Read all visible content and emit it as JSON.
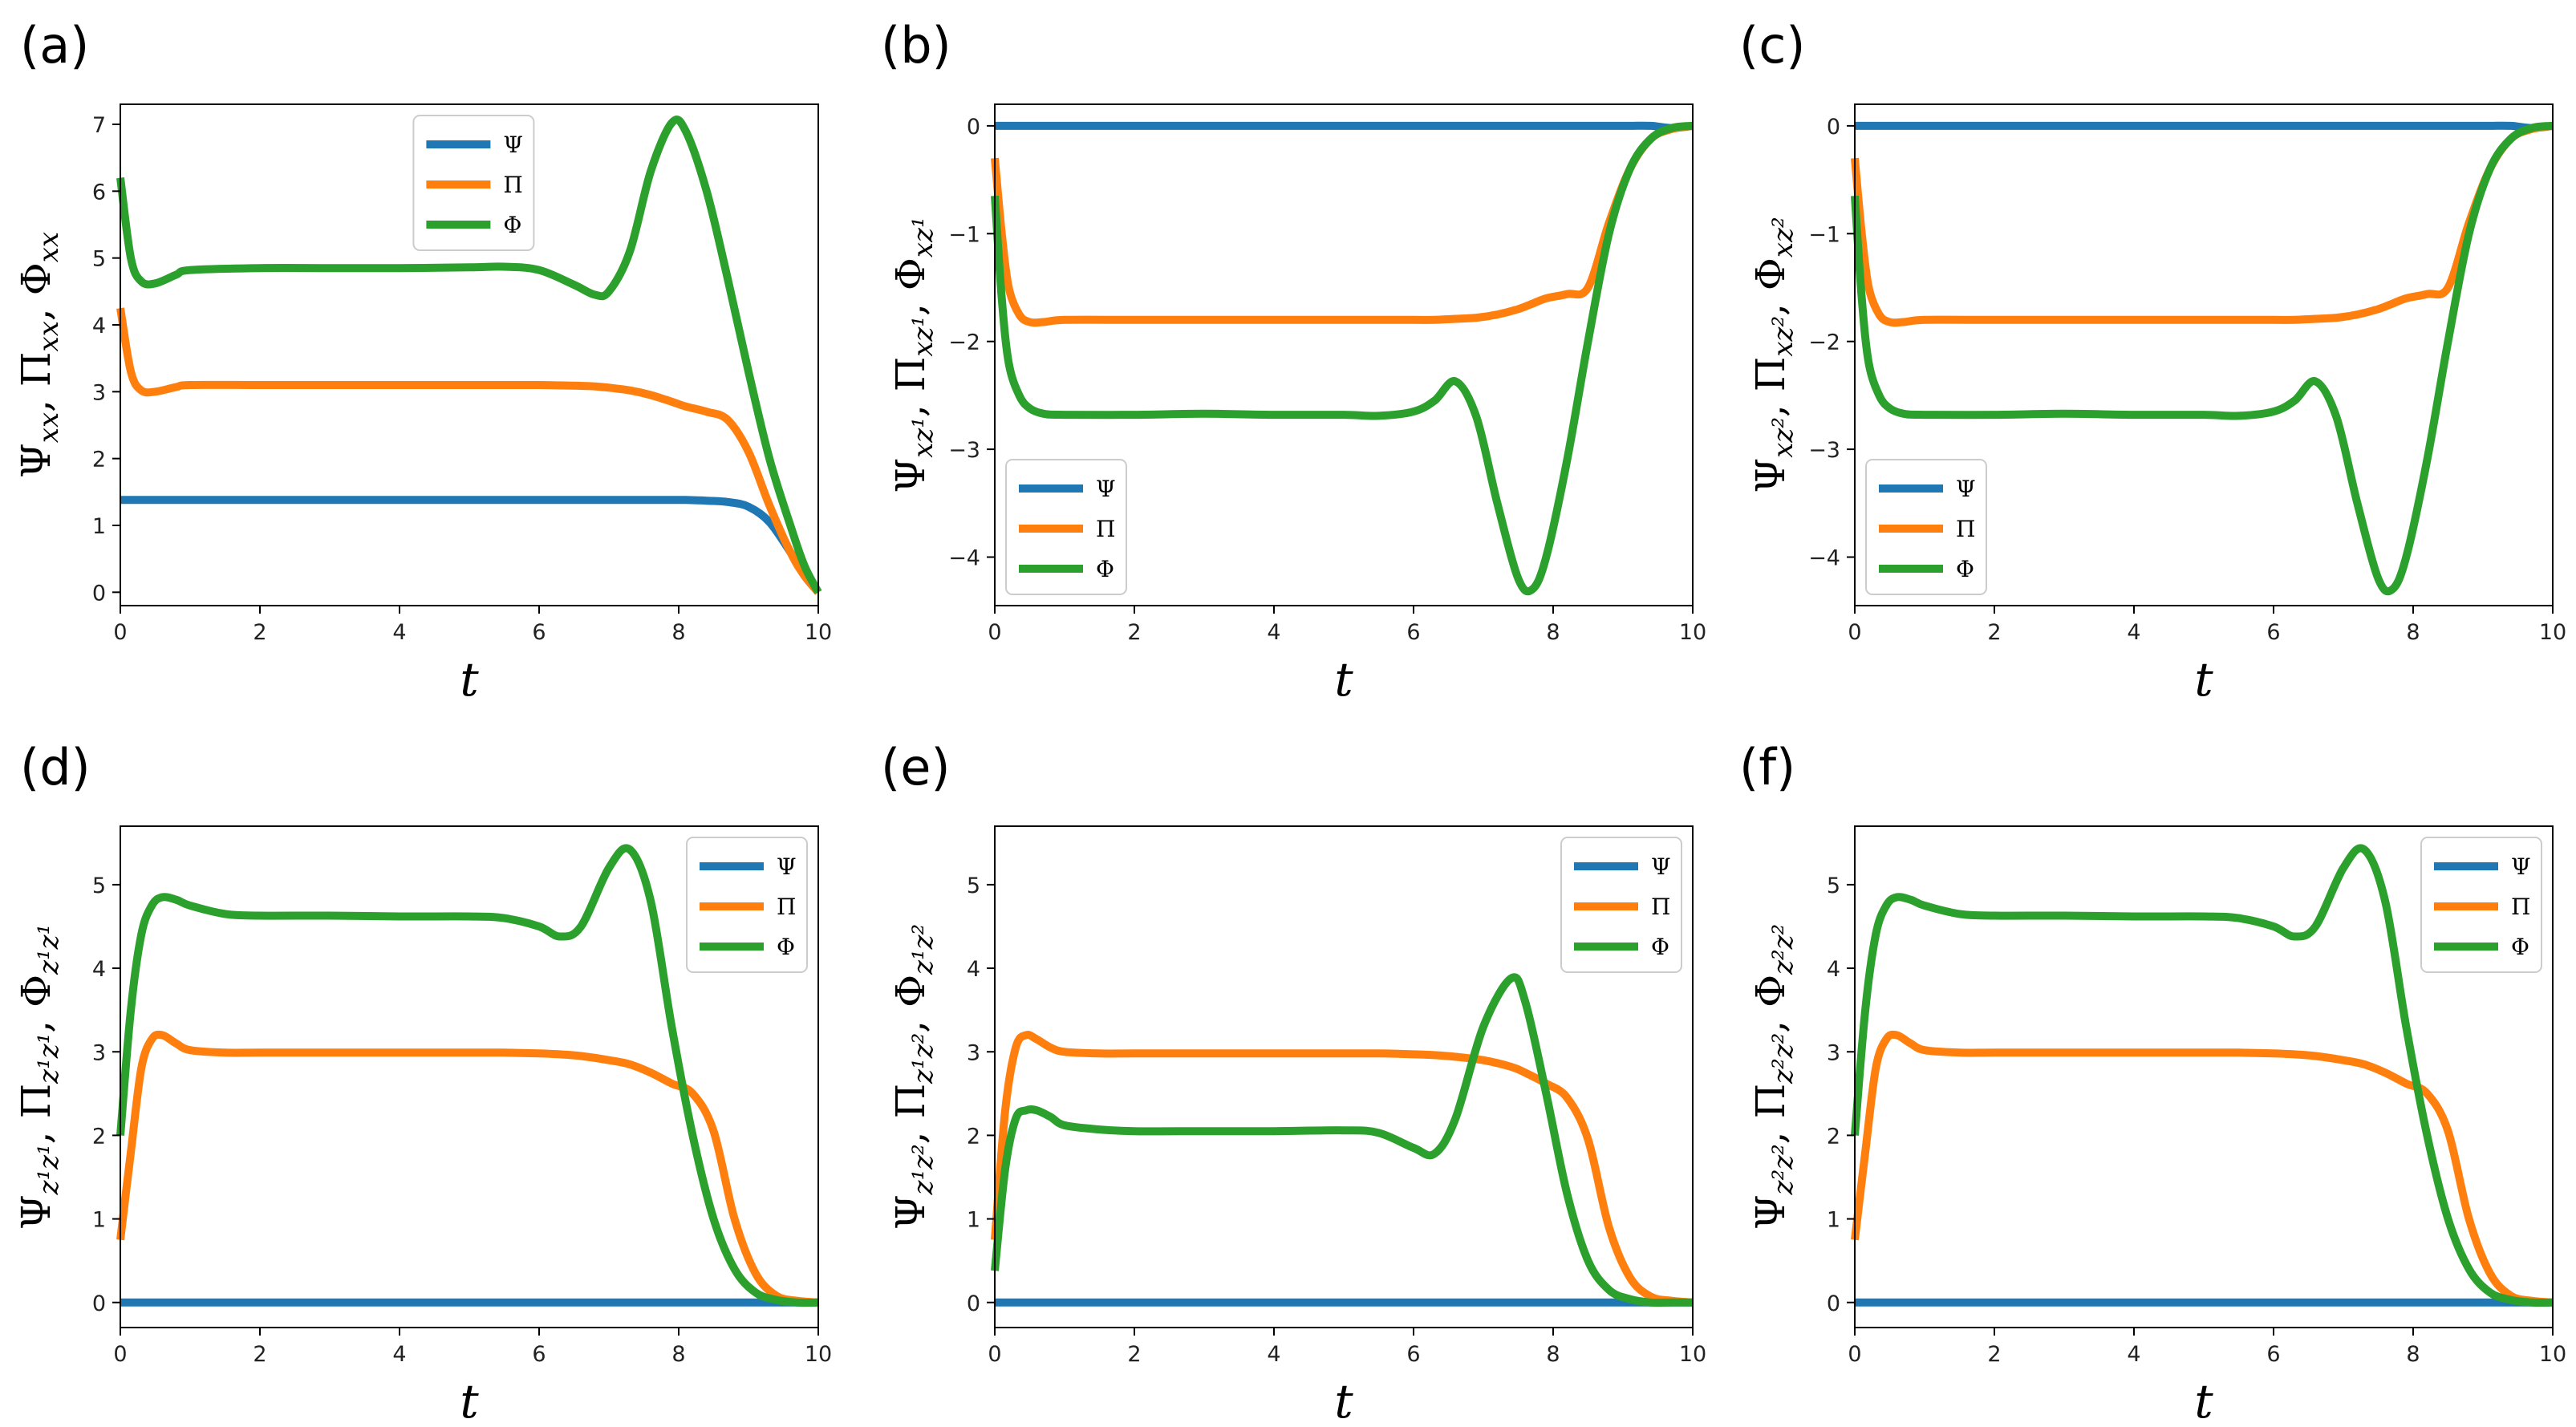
{
  "colors": {
    "psi": "#1f77b4",
    "pi": "#ff7f0e",
    "phi": "#2ca02c"
  },
  "chart_data": [
    {
      "panel": "(a)",
      "type": "line",
      "xlabel": "t",
      "ylabel": "Ψ_xx, Π_xx, Φ_xx",
      "xlim": [
        0,
        10
      ],
      "ylim": [
        -0.2,
        7.3
      ],
      "xticks": [
        "0",
        "2",
        "4",
        "6",
        "8",
        "10"
      ],
      "yticks": [
        "0",
        "1",
        "2",
        "3",
        "4",
        "5",
        "6",
        "7"
      ],
      "legend": "top-center",
      "x": [
        0,
        0.15,
        0.3,
        0.5,
        0.8,
        1,
        2,
        3,
        4,
        5,
        5.5,
        6,
        6.5,
        6.8,
        7,
        7.3,
        7.6,
        7.9,
        8.1,
        8.4,
        8.7,
        9,
        9.3,
        9.6,
        9.8,
        10
      ],
      "series": [
        {
          "name": "Ψ",
          "color_key": "psi",
          "values": [
            1.38,
            1.38,
            1.38,
            1.38,
            1.38,
            1.38,
            1.38,
            1.38,
            1.38,
            1.38,
            1.38,
            1.38,
            1.38,
            1.38,
            1.38,
            1.38,
            1.38,
            1.38,
            1.38,
            1.37,
            1.35,
            1.28,
            1.05,
            0.6,
            0.25,
            0
          ]
        },
        {
          "name": "Π",
          "color_key": "pi",
          "values": [
            4.25,
            3.3,
            3.02,
            3.0,
            3.07,
            3.1,
            3.1,
            3.1,
            3.1,
            3.1,
            3.1,
            3.1,
            3.09,
            3.08,
            3.06,
            3.02,
            2.95,
            2.85,
            2.78,
            2.7,
            2.58,
            2.1,
            1.3,
            0.6,
            0.25,
            0
          ]
        },
        {
          "name": "Φ",
          "color_key": "phi",
          "values": [
            6.2,
            5.0,
            4.65,
            4.62,
            4.75,
            4.82,
            4.85,
            4.85,
            4.85,
            4.86,
            4.87,
            4.82,
            4.6,
            4.45,
            4.5,
            5.1,
            6.3,
            7.02,
            6.9,
            6.0,
            4.7,
            3.3,
            2.0,
            1.0,
            0.4,
            0
          ]
        }
      ]
    },
    {
      "panel": "(b)",
      "type": "line",
      "xlabel": "t",
      "ylabel": "Ψ_xz¹, Π_xz¹, Φ_xz¹",
      "xlim": [
        0,
        10
      ],
      "ylim": [
        -4.45,
        0.2
      ],
      "xticks": [
        "0",
        "2",
        "4",
        "6",
        "8",
        "10"
      ],
      "yticks": [
        "0",
        "−1",
        "−2",
        "−3",
        "−4"
      ],
      "legend": "lower-left",
      "x": [
        0,
        0.1,
        0.2,
        0.35,
        0.5,
        0.7,
        1,
        2,
        3,
        4,
        5,
        5.5,
        6,
        6.3,
        6.6,
        6.9,
        7.2,
        7.5,
        7.7,
        7.9,
        8.2,
        8.5,
        8.8,
        9.1,
        9.4,
        9.7,
        10
      ],
      "series": [
        {
          "name": "Ψ",
          "color_key": "psi",
          "values": [
            0,
            0,
            0,
            0,
            0,
            0,
            0,
            0,
            0,
            0,
            0,
            0,
            0,
            0,
            0,
            0,
            0,
            0,
            0,
            0,
            0,
            0,
            0,
            0,
            0,
            -0.02,
            0
          ]
        },
        {
          "name": "Π",
          "color_key": "pi",
          "values": [
            -0.3,
            -1.0,
            -1.5,
            -1.75,
            -1.82,
            -1.82,
            -1.8,
            -1.8,
            -1.8,
            -1.8,
            -1.8,
            -1.8,
            -1.8,
            -1.8,
            -1.79,
            -1.78,
            -1.75,
            -1.7,
            -1.65,
            -1.6,
            -1.56,
            -1.5,
            -0.9,
            -0.4,
            -0.12,
            -0.03,
            0
          ]
        },
        {
          "name": "Φ",
          "color_key": "phi",
          "values": [
            -0.65,
            -1.6,
            -2.2,
            -2.5,
            -2.62,
            -2.67,
            -2.68,
            -2.68,
            -2.67,
            -2.68,
            -2.68,
            -2.69,
            -2.65,
            -2.55,
            -2.37,
            -2.7,
            -3.5,
            -4.2,
            -4.3,
            -4.0,
            -3.1,
            -2.0,
            -1.0,
            -0.4,
            -0.12,
            -0.02,
            0
          ]
        }
      ]
    },
    {
      "panel": "(c)",
      "type": "line",
      "xlabel": "t",
      "ylabel": "Ψ_xz², Π_xz², Φ_xz²",
      "xlim": [
        0,
        10
      ],
      "ylim": [
        -4.45,
        0.2
      ],
      "xticks": [
        "0",
        "2",
        "4",
        "6",
        "8",
        "10"
      ],
      "yticks": [
        "0",
        "−1",
        "−2",
        "−3",
        "−4"
      ],
      "legend": "lower-left",
      "x": [
        0,
        0.1,
        0.2,
        0.35,
        0.5,
        0.7,
        1,
        2,
        3,
        4,
        5,
        5.5,
        6,
        6.3,
        6.6,
        6.9,
        7.2,
        7.5,
        7.7,
        7.9,
        8.2,
        8.5,
        8.8,
        9.1,
        9.4,
        9.7,
        10
      ],
      "series": [
        {
          "name": "Ψ",
          "color_key": "psi",
          "values": [
            0,
            0,
            0,
            0,
            0,
            0,
            0,
            0,
            0,
            0,
            0,
            0,
            0,
            0,
            0,
            0,
            0,
            0,
            0,
            0,
            0,
            0,
            0,
            0,
            0,
            -0.02,
            0
          ]
        },
        {
          "name": "Π",
          "color_key": "pi",
          "values": [
            -0.3,
            -1.0,
            -1.5,
            -1.75,
            -1.82,
            -1.82,
            -1.8,
            -1.8,
            -1.8,
            -1.8,
            -1.8,
            -1.8,
            -1.8,
            -1.8,
            -1.79,
            -1.78,
            -1.75,
            -1.7,
            -1.65,
            -1.6,
            -1.56,
            -1.5,
            -0.9,
            -0.4,
            -0.12,
            -0.03,
            0
          ]
        },
        {
          "name": "Φ",
          "color_key": "phi",
          "values": [
            -0.65,
            -1.6,
            -2.2,
            -2.5,
            -2.62,
            -2.67,
            -2.68,
            -2.68,
            -2.67,
            -2.68,
            -2.68,
            -2.69,
            -2.65,
            -2.55,
            -2.37,
            -2.7,
            -3.5,
            -4.2,
            -4.3,
            -4.0,
            -3.1,
            -2.0,
            -1.0,
            -0.4,
            -0.12,
            -0.02,
            0
          ]
        }
      ]
    },
    {
      "panel": "(d)",
      "type": "line",
      "xlabel": "t",
      "ylabel": "Ψ_z¹z¹, Π_z¹z¹, Φ_z¹z¹",
      "xlim": [
        0,
        10
      ],
      "ylim": [
        -0.3,
        5.7
      ],
      "xticks": [
        "0",
        "2",
        "4",
        "6",
        "8",
        "10"
      ],
      "yticks": [
        "0",
        "1",
        "2",
        "3",
        "4",
        "5"
      ],
      "legend": "top-right",
      "x": [
        0,
        0.15,
        0.3,
        0.45,
        0.6,
        0.8,
        1,
        1.5,
        2,
        3,
        4,
        5,
        5.5,
        6,
        6.3,
        6.6,
        7,
        7.3,
        7.6,
        7.9,
        8.2,
        8.5,
        8.8,
        9.1,
        9.4,
        9.7,
        10
      ],
      "series": [
        {
          "name": "Ψ",
          "color_key": "psi",
          "values": [
            0,
            0,
            0,
            0,
            0,
            0,
            0,
            0,
            0,
            0,
            0,
            0,
            0,
            0,
            0,
            0,
            0,
            0,
            0,
            0,
            0,
            0,
            0,
            0,
            0,
            0,
            0
          ]
        },
        {
          "name": "Π",
          "color_key": "pi",
          "values": [
            0.75,
            1.8,
            2.8,
            3.15,
            3.2,
            3.1,
            3.02,
            2.99,
            2.99,
            2.99,
            2.99,
            2.99,
            2.99,
            2.98,
            2.97,
            2.95,
            2.9,
            2.85,
            2.75,
            2.62,
            2.5,
            2.05,
            1.0,
            0.35,
            0.08,
            0.02,
            0
          ]
        },
        {
          "name": "Φ",
          "color_key": "phi",
          "values": [
            2.0,
            3.5,
            4.4,
            4.75,
            4.85,
            4.82,
            4.75,
            4.65,
            4.63,
            4.63,
            4.62,
            4.62,
            4.6,
            4.5,
            4.38,
            4.5,
            5.2,
            5.42,
            4.8,
            3.3,
            2.0,
            1.0,
            0.4,
            0.12,
            0.03,
            0,
            0
          ]
        }
      ]
    },
    {
      "panel": "(e)",
      "type": "line",
      "xlabel": "t",
      "ylabel": "Ψ_z¹z², Π_z¹z², Φ_z¹z²",
      "xlim": [
        0,
        10
      ],
      "ylim": [
        -0.3,
        5.7
      ],
      "xticks": [
        "0",
        "2",
        "4",
        "6",
        "8",
        "10"
      ],
      "yticks": [
        "0",
        "1",
        "2",
        "3",
        "4",
        "5"
      ],
      "legend": "top-right",
      "x": [
        0,
        0.15,
        0.3,
        0.45,
        0.6,
        0.8,
        1,
        1.5,
        2,
        3,
        4,
        5,
        5.5,
        6,
        6.3,
        6.6,
        7,
        7.4,
        7.6,
        7.9,
        8.2,
        8.5,
        8.8,
        9.1,
        9.4,
        9.7,
        10
      ],
      "series": [
        {
          "name": "Ψ",
          "color_key": "psi",
          "values": [
            0,
            0,
            0,
            0,
            0,
            0,
            0,
            0,
            0,
            0,
            0,
            0,
            0,
            0,
            0,
            0,
            0,
            0,
            0,
            0,
            0,
            0,
            0,
            0,
            0,
            0,
            0
          ]
        },
        {
          "name": "Π",
          "color_key": "pi",
          "values": [
            0.75,
            2.3,
            3.05,
            3.2,
            3.15,
            3.05,
            3.0,
            2.98,
            2.98,
            2.98,
            2.98,
            2.98,
            2.98,
            2.97,
            2.96,
            2.94,
            2.9,
            2.82,
            2.75,
            2.62,
            2.45,
            1.95,
            0.9,
            0.3,
            0.07,
            0.02,
            0
          ]
        },
        {
          "name": "Φ",
          "color_key": "phi",
          "values": [
            0.38,
            1.6,
            2.2,
            2.3,
            2.3,
            2.22,
            2.12,
            2.07,
            2.05,
            2.05,
            2.05,
            2.06,
            2.03,
            1.85,
            1.78,
            2.2,
            3.3,
            3.88,
            3.6,
            2.5,
            1.3,
            0.5,
            0.15,
            0.04,
            0,
            0,
            0
          ]
        }
      ]
    },
    {
      "panel": "(f)",
      "type": "line",
      "xlabel": "t",
      "ylabel": "Ψ_z²z², Π_z²z², Φ_z²z²",
      "xlim": [
        0,
        10
      ],
      "ylim": [
        -0.3,
        5.7
      ],
      "xticks": [
        "0",
        "2",
        "4",
        "6",
        "8",
        "10"
      ],
      "yticks": [
        "0",
        "1",
        "2",
        "3",
        "4",
        "5"
      ],
      "legend": "top-right",
      "x": [
        0,
        0.15,
        0.3,
        0.45,
        0.6,
        0.8,
        1,
        1.5,
        2,
        3,
        4,
        5,
        5.5,
        6,
        6.3,
        6.6,
        7,
        7.3,
        7.6,
        7.9,
        8.2,
        8.5,
        8.8,
        9.1,
        9.4,
        9.7,
        10
      ],
      "series": [
        {
          "name": "Ψ",
          "color_key": "psi",
          "values": [
            0,
            0,
            0,
            0,
            0,
            0,
            0,
            0,
            0,
            0,
            0,
            0,
            0,
            0,
            0,
            0,
            0,
            0,
            0,
            0,
            0,
            0,
            0,
            0,
            0,
            0,
            0
          ]
        },
        {
          "name": "Π",
          "color_key": "pi",
          "values": [
            0.75,
            1.8,
            2.8,
            3.15,
            3.2,
            3.1,
            3.02,
            2.99,
            2.99,
            2.99,
            2.99,
            2.99,
            2.99,
            2.98,
            2.97,
            2.95,
            2.9,
            2.85,
            2.75,
            2.62,
            2.5,
            2.05,
            1.0,
            0.35,
            0.08,
            0.02,
            0
          ]
        },
        {
          "name": "Φ",
          "color_key": "phi",
          "values": [
            2.0,
            3.5,
            4.4,
            4.75,
            4.85,
            4.82,
            4.75,
            4.65,
            4.63,
            4.63,
            4.62,
            4.62,
            4.6,
            4.5,
            4.38,
            4.5,
            5.2,
            5.42,
            4.8,
            3.3,
            2.0,
            1.0,
            0.4,
            0.12,
            0.03,
            0,
            0
          ]
        }
      ]
    }
  ]
}
